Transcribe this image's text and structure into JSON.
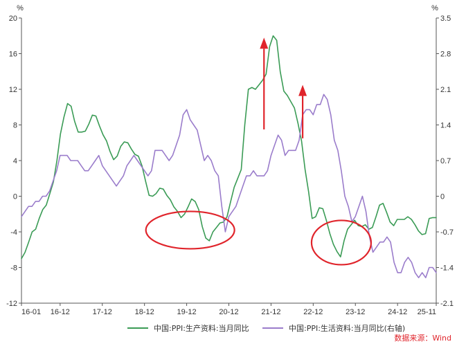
{
  "chart_data": {
    "type": "line",
    "left_unit": "%",
    "right_unit": "%",
    "x_tick_labels": [
      "16-01",
      "16-12",
      "17-12",
      "18-12",
      "19-12",
      "20-12",
      "21-12",
      "22-12",
      "23-12",
      "24-12",
      "25-11"
    ],
    "y_left_ticks": [
      20,
      16,
      12,
      8,
      4,
      0,
      -4,
      -8,
      -12
    ],
    "y_right_ticks": [
      3.5,
      2.8,
      2.1,
      1.4,
      0.7,
      0,
      -0.7,
      -1.4,
      -2.1
    ],
    "ylim_left": [
      -12,
      20
    ],
    "ylim_right": [
      -2.1,
      3.5
    ],
    "x_start": "2016-01",
    "x_end": "2025-11",
    "legend_position": "bottom-center",
    "grid": false,
    "series": [
      {
        "name": "中国:PPI:生产资料:当月同比",
        "axis": "left",
        "color": "#3a9b55",
        "values": [
          -7.0,
          -6.3,
          -5.2,
          -4.0,
          -3.7,
          -2.5,
          -1.5,
          -1.0,
          0.3,
          1.6,
          4.0,
          7.0,
          8.9,
          10.4,
          10.1,
          8.4,
          7.2,
          7.2,
          7.3,
          8.1,
          9.1,
          9.0,
          7.9,
          6.9,
          6.2,
          5.0,
          4.1,
          4.5,
          5.6,
          6.1,
          6.0,
          5.3,
          4.7,
          4.5,
          3.4,
          1.7,
          0.1,
          0.0,
          0.3,
          0.9,
          0.8,
          0.1,
          -0.4,
          -1.2,
          -1.7,
          -2.4,
          -2.0,
          -1.2,
          -0.3,
          -0.6,
          -1.5,
          -3.4,
          -4.7,
          -5.0,
          -4.0,
          -3.5,
          -3.0,
          -2.9,
          -2.3,
          -0.6,
          1.0,
          2.0,
          3.0,
          8.0,
          12.0,
          12.2,
          12.0,
          12.5,
          13.0,
          13.7,
          16.8,
          18.0,
          17.5,
          14.0,
          11.8,
          11.3,
          10.6,
          9.9,
          8.2,
          6.2,
          3.0,
          0.5,
          -2.5,
          -2.3,
          -1.3,
          -1.4,
          -2.7,
          -4.2,
          -5.4,
          -6.2,
          -6.8,
          -5.0,
          -3.7,
          -3.2,
          -2.7,
          -3.3,
          -3.4,
          -3.2,
          -3.7,
          -3.5,
          -2.3,
          -1.0,
          -0.8,
          -1.8,
          -2.9,
          -3.3,
          -2.6,
          -2.6,
          -2.6,
          -2.3,
          -2.6,
          -3.2,
          -3.9,
          -4.3,
          -4.2,
          -2.5,
          -2.4,
          -2.4
        ]
      },
      {
        "name": "中国:PPI:生活资料:当月同比(右轴)",
        "axis": "right",
        "color": "#9a7ccb",
        "values": [
          -0.4,
          -0.3,
          -0.2,
          -0.2,
          -0.1,
          -0.1,
          0.0,
          0.0,
          0.1,
          0.3,
          0.5,
          0.8,
          0.8,
          0.8,
          0.7,
          0.7,
          0.7,
          0.6,
          0.5,
          0.5,
          0.6,
          0.7,
          0.8,
          0.6,
          0.5,
          0.4,
          0.3,
          0.2,
          0.3,
          0.4,
          0.6,
          0.7,
          0.8,
          0.7,
          0.6,
          0.5,
          0.4,
          0.5,
          0.9,
          0.9,
          0.9,
          0.8,
          0.7,
          0.8,
          1.0,
          1.2,
          1.6,
          1.7,
          1.5,
          1.4,
          1.3,
          1.0,
          0.7,
          0.8,
          0.7,
          0.5,
          0.4,
          -0.2,
          -0.7,
          -0.4,
          -0.3,
          -0.2,
          0.0,
          0.2,
          0.4,
          0.4,
          0.5,
          0.4,
          0.4,
          0.4,
          0.5,
          0.8,
          1.0,
          1.2,
          1.1,
          0.8,
          0.9,
          0.9,
          0.9,
          1.1,
          1.6,
          1.7,
          1.7,
          1.6,
          1.8,
          1.8,
          2.0,
          1.9,
          1.6,
          1.1,
          0.9,
          0.5,
          0.0,
          -0.2,
          -0.5,
          -0.4,
          -0.2,
          0.0,
          -0.3,
          -0.8,
          -1.1,
          -1.0,
          -0.9,
          -0.9,
          -0.8,
          -0.9,
          -1.3,
          -1.5,
          -1.5,
          -1.3,
          -1.2,
          -1.3,
          -1.5,
          -1.6,
          -1.5,
          -1.6,
          -1.4,
          -1.4,
          -1.5
        ]
      }
    ],
    "legend": [
      {
        "label": "中国:PPI:生产资料:当月同比",
        "color": "#3a9b55"
      },
      {
        "label": "中国:PPI:生活资料:当月同比(右轴)",
        "color": "#9a7ccb"
      }
    ],
    "source_text": "数据来源：Wind",
    "annotations": {
      "circles": [
        {
          "cx_month": "2020-01",
          "cy_value": -3.8,
          "axis": "left"
        },
        {
          "cx_month": "2023-08",
          "cy_value": -5.2,
          "axis": "left"
        }
      ],
      "arrows": [
        {
          "x_month": "2021-10",
          "from_value": 7.5,
          "to_value": 17.8,
          "axis": "left"
        },
        {
          "x_month": "2022-09",
          "from_value": 6.5,
          "to_value": 12.5,
          "axis": "left"
        }
      ],
      "accent_color": "#e0242b"
    }
  }
}
